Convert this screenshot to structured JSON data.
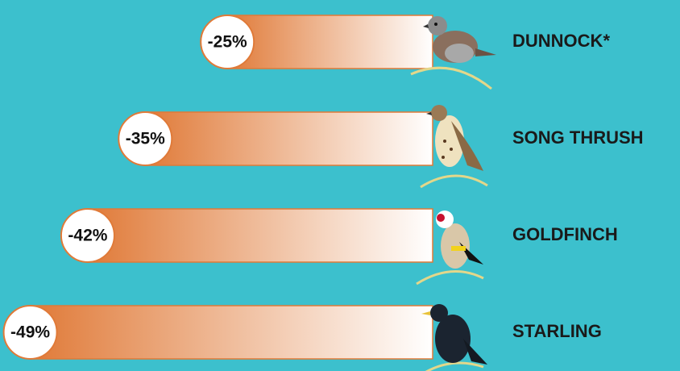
{
  "chart_data": {
    "type": "bar",
    "categories": [
      "DUNNOCK*",
      "SONG THRUSH",
      "GOLDFINCH",
      "STARLING"
    ],
    "values": [
      -25,
      -35,
      -42,
      -49
    ],
    "value_labels": [
      "-25%",
      "-35%",
      "-42%",
      "-49%"
    ],
    "color": "#e07a38",
    "xlim": [
      -52,
      0
    ]
  }
}
